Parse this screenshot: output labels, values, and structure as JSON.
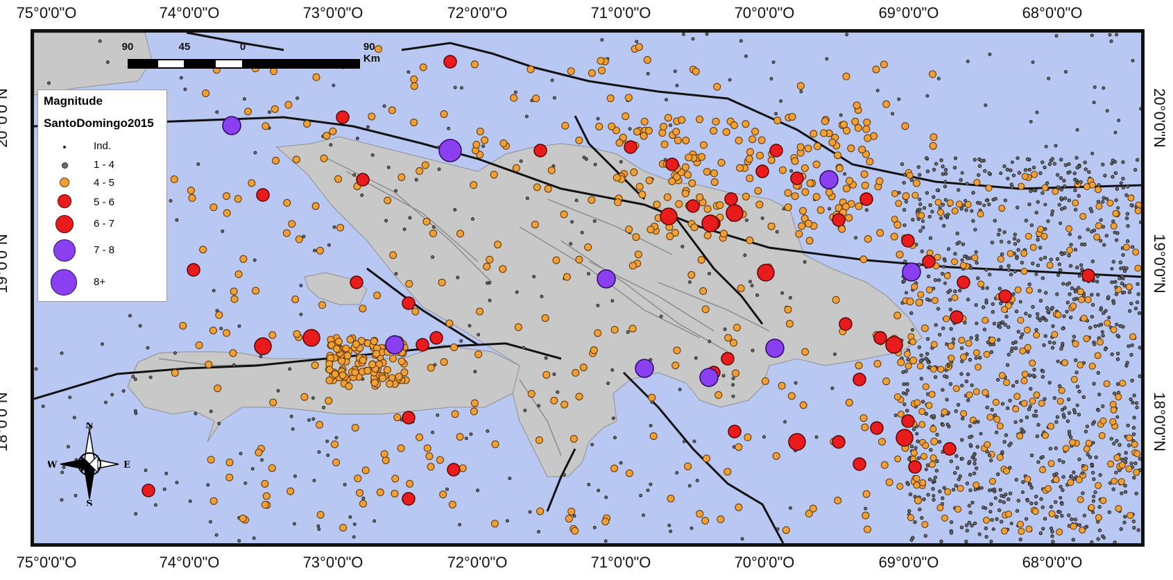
{
  "axis_labels": {
    "longitude_top": [
      "75°0'0\"O",
      "74°0'0\"O",
      "73°0'0\"O",
      "72°0'0\"O",
      "71°0'0\"O",
      "70°0'0\"O",
      "69°0'0\"O",
      "68°0'0\"O"
    ],
    "longitude_bottom": [
      "75°0'0\"O",
      "74°0'0\"O",
      "73°0'0\"O",
      "72°0'0\"O",
      "71°0'0\"O",
      "70°0'0\"O",
      "69°0'0\"O",
      "68°0'0\"O"
    ],
    "latitude_left": [
      "20°0'0\"N",
      "19°0'0\"N",
      "18°0'0\"N"
    ],
    "latitude_right": [
      "20°0'0\"N",
      "19°0'0\"N",
      "18°0'0\"N"
    ]
  },
  "legend": {
    "title": "Magnitude",
    "subtitle": "SantoDomingo2015",
    "classes": [
      {
        "label": "Ind.",
        "color": "#555555"
      },
      {
        "label": "1 - 4",
        "color": "#6e6e6e"
      },
      {
        "label": "4 - 5",
        "color": "#f2a035"
      },
      {
        "label": "5 - 6",
        "color": "#e81c1c"
      },
      {
        "label": "6 - 7",
        "color": "#e81c1c"
      },
      {
        "label": "7 - 8",
        "color": "#8a3ff0"
      },
      {
        "label": "8+",
        "color": "#8a3ff0"
      }
    ]
  },
  "scale_bar": {
    "labels": [
      "90",
      "45",
      "0",
      "90 Km"
    ]
  },
  "compass": {
    "north": "N",
    "south": "S",
    "east": "E",
    "west": "W"
  },
  "colors": {
    "sea": "#b9c8f2",
    "land": "#c9c9c9",
    "fault": "#111111"
  }
}
